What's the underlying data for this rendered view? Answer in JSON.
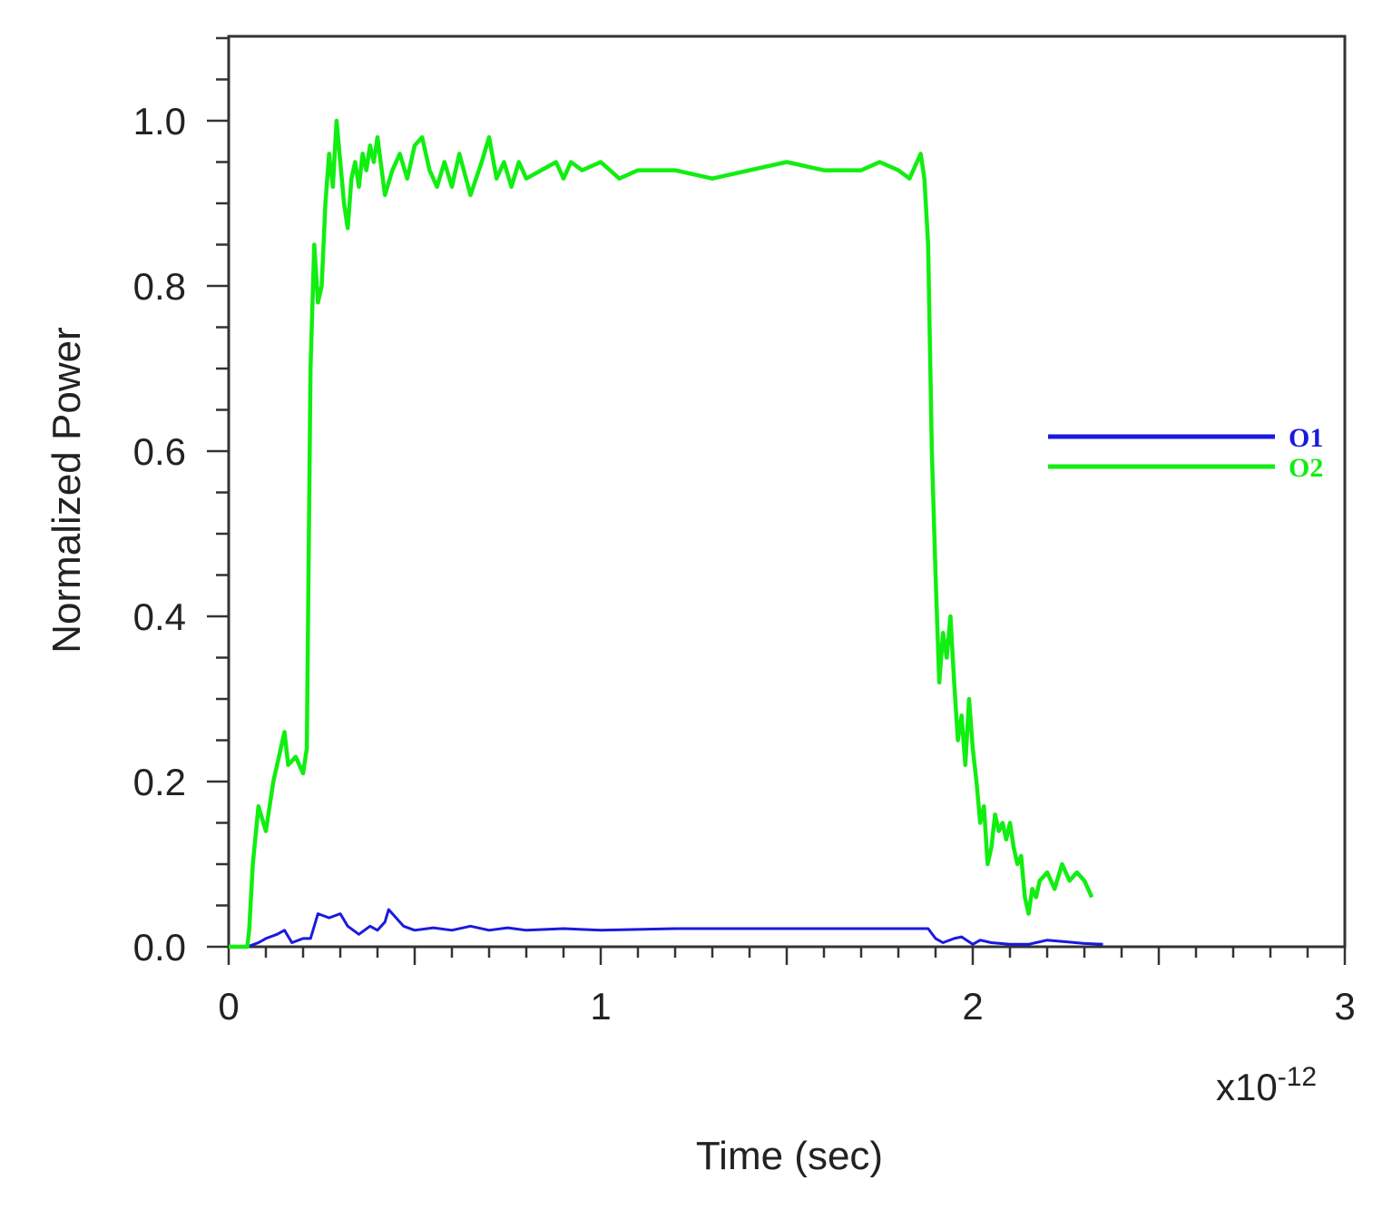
{
  "chart_data": {
    "type": "line",
    "title": "",
    "xlabel": "Time (sec)",
    "ylabel": "Normalized Power",
    "x_multiplier": "x10",
    "x_multiplier_exp": "-12",
    "xlim": [
      0,
      3
    ],
    "ylim": [
      0,
      1.1
    ],
    "xticks": [
      "0",
      "1",
      "2",
      "3"
    ],
    "yticks": [
      "0.0",
      "0.2",
      "0.4",
      "0.6",
      "0.8",
      "1.0"
    ],
    "grid": false,
    "legend_position": "right",
    "series": [
      {
        "name": "O1",
        "color": "#1a1adf",
        "x": [
          0.0,
          0.05,
          0.08,
          0.1,
          0.13,
          0.15,
          0.17,
          0.2,
          0.22,
          0.24,
          0.27,
          0.3,
          0.32,
          0.35,
          0.38,
          0.4,
          0.42,
          0.43,
          0.45,
          0.47,
          0.5,
          0.55,
          0.6,
          0.65,
          0.7,
          0.75,
          0.8,
          0.9,
          1.0,
          1.2,
          1.4,
          1.6,
          1.8,
          1.88,
          1.9,
          1.92,
          1.95,
          1.97,
          2.0,
          2.02,
          2.05,
          2.1,
          2.15,
          2.2,
          2.25,
          2.3,
          2.35
        ],
        "y": [
          0.0,
          0.0,
          0.005,
          0.01,
          0.015,
          0.02,
          0.005,
          0.01,
          0.01,
          0.04,
          0.035,
          0.04,
          0.025,
          0.015,
          0.025,
          0.02,
          0.03,
          0.045,
          0.035,
          0.025,
          0.02,
          0.023,
          0.02,
          0.025,
          0.02,
          0.023,
          0.02,
          0.022,
          0.02,
          0.022,
          0.022,
          0.022,
          0.022,
          0.022,
          0.01,
          0.005,
          0.01,
          0.012,
          0.003,
          0.008,
          0.005,
          0.003,
          0.003,
          0.008,
          0.006,
          0.004,
          0.003
        ]
      },
      {
        "name": "O2",
        "color": "#11ee11",
        "x": [
          0.0,
          0.05,
          0.055,
          0.065,
          0.08,
          0.1,
          0.12,
          0.14,
          0.15,
          0.16,
          0.18,
          0.2,
          0.21,
          0.22,
          0.23,
          0.24,
          0.25,
          0.26,
          0.27,
          0.28,
          0.29,
          0.3,
          0.31,
          0.32,
          0.33,
          0.34,
          0.35,
          0.36,
          0.37,
          0.38,
          0.39,
          0.4,
          0.42,
          0.44,
          0.46,
          0.48,
          0.5,
          0.52,
          0.54,
          0.56,
          0.58,
          0.6,
          0.62,
          0.65,
          0.68,
          0.7,
          0.72,
          0.74,
          0.76,
          0.78,
          0.8,
          0.84,
          0.88,
          0.9,
          0.92,
          0.95,
          1.0,
          1.05,
          1.1,
          1.2,
          1.3,
          1.4,
          1.5,
          1.6,
          1.7,
          1.75,
          1.8,
          1.83,
          1.85,
          1.86,
          1.87,
          1.88,
          1.89,
          1.9,
          1.91,
          1.92,
          1.93,
          1.94,
          1.95,
          1.96,
          1.97,
          1.98,
          1.99,
          2.0,
          2.01,
          2.02,
          2.03,
          2.04,
          2.05,
          2.06,
          2.07,
          2.08,
          2.09,
          2.1,
          2.11,
          2.12,
          2.13,
          2.14,
          2.15,
          2.16,
          2.17,
          2.18,
          2.2,
          2.22,
          2.24,
          2.26,
          2.28,
          2.3,
          2.32
        ],
        "y": [
          0.0,
          0.0,
          0.02,
          0.1,
          0.17,
          0.14,
          0.2,
          0.24,
          0.26,
          0.22,
          0.23,
          0.21,
          0.24,
          0.7,
          0.85,
          0.78,
          0.8,
          0.9,
          0.96,
          0.92,
          1.0,
          0.95,
          0.9,
          0.87,
          0.93,
          0.95,
          0.92,
          0.96,
          0.94,
          0.97,
          0.95,
          0.98,
          0.91,
          0.94,
          0.96,
          0.93,
          0.97,
          0.98,
          0.94,
          0.92,
          0.95,
          0.92,
          0.96,
          0.91,
          0.95,
          0.98,
          0.93,
          0.95,
          0.92,
          0.95,
          0.93,
          0.94,
          0.95,
          0.93,
          0.95,
          0.94,
          0.95,
          0.93,
          0.94,
          0.94,
          0.93,
          0.94,
          0.95,
          0.94,
          0.94,
          0.95,
          0.94,
          0.93,
          0.95,
          0.96,
          0.93,
          0.85,
          0.6,
          0.45,
          0.32,
          0.38,
          0.35,
          0.4,
          0.32,
          0.25,
          0.28,
          0.22,
          0.3,
          0.24,
          0.2,
          0.15,
          0.17,
          0.1,
          0.12,
          0.16,
          0.14,
          0.15,
          0.13,
          0.15,
          0.12,
          0.1,
          0.11,
          0.06,
          0.04,
          0.07,
          0.06,
          0.08,
          0.09,
          0.07,
          0.1,
          0.08,
          0.09,
          0.08,
          0.06
        ]
      }
    ]
  }
}
